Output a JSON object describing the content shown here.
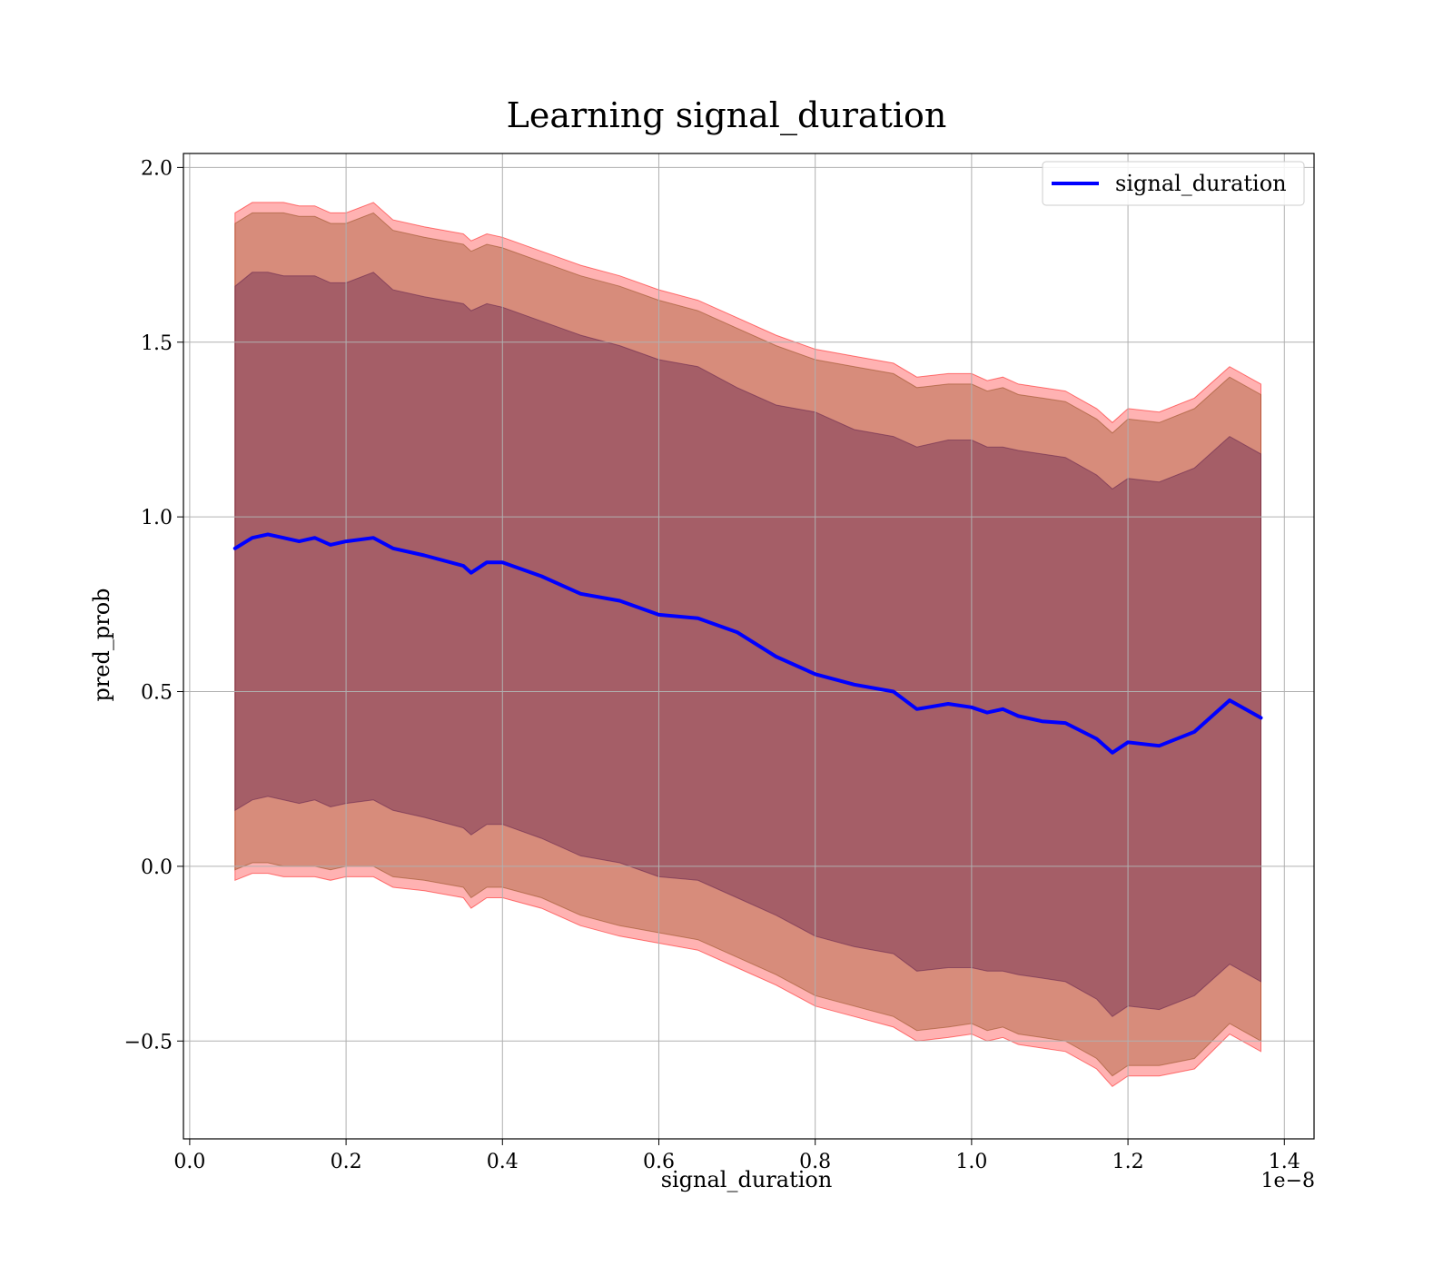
{
  "chart_data": {
    "type": "line",
    "title": "Learning signal_duration",
    "xlabel": "signal_duration",
    "ylabel": "pred_prob",
    "x_offset_label": "1e−8",
    "xlim": [
      -0.008,
      1.438
    ],
    "ylim": [
      -0.78,
      2.04
    ],
    "xticks": [
      0.0,
      0.2,
      0.4,
      0.6,
      0.8,
      1.0,
      1.2,
      1.4
    ],
    "xtick_labels": [
      "0.0",
      "0.2",
      "0.4",
      "0.6",
      "0.8",
      "1.0",
      "1.2",
      "1.4"
    ],
    "yticks": [
      -0.5,
      0.0,
      0.5,
      1.0,
      1.5,
      2.0
    ],
    "ytick_labels": [
      "−0.5",
      "0.0",
      "0.5",
      "1.0",
      "1.5",
      "2.0"
    ],
    "grid": true,
    "legend_position": "top-right",
    "colors": {
      "line": "#0000ff",
      "band_outer": "#ff0000",
      "band_middle": "#8b4513",
      "band_inner": "#5a1a4a"
    },
    "x": [
      0.058,
      0.08,
      0.1,
      0.12,
      0.14,
      0.16,
      0.18,
      0.2,
      0.235,
      0.26,
      0.3,
      0.35,
      0.36,
      0.38,
      0.4,
      0.45,
      0.5,
      0.55,
      0.6,
      0.65,
      0.7,
      0.75,
      0.8,
      0.85,
      0.9,
      0.93,
      0.97,
      1.0,
      1.02,
      1.04,
      1.06,
      1.09,
      1.12,
      1.16,
      1.18,
      1.2,
      1.24,
      1.285,
      1.33,
      1.37
    ],
    "series": [
      {
        "name": "signal_duration",
        "values": [
          0.91,
          0.94,
          0.95,
          0.94,
          0.93,
          0.94,
          0.92,
          0.93,
          0.94,
          0.91,
          0.89,
          0.86,
          0.84,
          0.87,
          0.87,
          0.83,
          0.78,
          0.76,
          0.72,
          0.71,
          0.67,
          0.6,
          0.55,
          0.52,
          0.5,
          0.45,
          0.465,
          0.455,
          0.44,
          0.45,
          0.43,
          0.415,
          0.41,
          0.365,
          0.325,
          0.355,
          0.345,
          0.385,
          0.475,
          0.425
        ]
      }
    ],
    "bands": [
      {
        "role": "outer",
        "upper": [
          1.87,
          1.9,
          1.9,
          1.9,
          1.89,
          1.89,
          1.87,
          1.87,
          1.9,
          1.85,
          1.83,
          1.81,
          1.79,
          1.81,
          1.8,
          1.76,
          1.72,
          1.69,
          1.65,
          1.62,
          1.57,
          1.52,
          1.48,
          1.46,
          1.44,
          1.4,
          1.41,
          1.41,
          1.39,
          1.4,
          1.38,
          1.37,
          1.36,
          1.31,
          1.27,
          1.31,
          1.3,
          1.34,
          1.43,
          1.38
        ],
        "lower": [
          -0.04,
          -0.02,
          -0.02,
          -0.03,
          -0.03,
          -0.03,
          -0.04,
          -0.03,
          -0.03,
          -0.06,
          -0.07,
          -0.09,
          -0.12,
          -0.09,
          -0.09,
          -0.12,
          -0.17,
          -0.2,
          -0.22,
          -0.24,
          -0.29,
          -0.34,
          -0.4,
          -0.43,
          -0.46,
          -0.5,
          -0.49,
          -0.48,
          -0.5,
          -0.49,
          -0.51,
          -0.52,
          -0.53,
          -0.58,
          -0.63,
          -0.6,
          -0.6,
          -0.58,
          -0.48,
          -0.53
        ]
      },
      {
        "role": "middle",
        "upper": [
          1.84,
          1.87,
          1.87,
          1.87,
          1.86,
          1.86,
          1.84,
          1.84,
          1.87,
          1.82,
          1.8,
          1.78,
          1.76,
          1.78,
          1.77,
          1.73,
          1.69,
          1.66,
          1.62,
          1.59,
          1.54,
          1.49,
          1.45,
          1.43,
          1.41,
          1.37,
          1.38,
          1.38,
          1.36,
          1.37,
          1.35,
          1.34,
          1.33,
          1.28,
          1.24,
          1.28,
          1.27,
          1.31,
          1.4,
          1.35
        ],
        "lower": [
          -0.01,
          0.01,
          0.01,
          0.0,
          0.0,
          0.0,
          -0.01,
          0.0,
          0.0,
          -0.03,
          -0.04,
          -0.06,
          -0.09,
          -0.06,
          -0.06,
          -0.09,
          -0.14,
          -0.17,
          -0.19,
          -0.21,
          -0.26,
          -0.31,
          -0.37,
          -0.4,
          -0.43,
          -0.47,
          -0.46,
          -0.45,
          -0.47,
          -0.46,
          -0.48,
          -0.49,
          -0.5,
          -0.55,
          -0.6,
          -0.57,
          -0.57,
          -0.55,
          -0.45,
          -0.5
        ]
      },
      {
        "role": "inner",
        "upper": [
          1.66,
          1.7,
          1.7,
          1.69,
          1.69,
          1.69,
          1.67,
          1.67,
          1.7,
          1.65,
          1.63,
          1.61,
          1.59,
          1.61,
          1.6,
          1.56,
          1.52,
          1.49,
          1.45,
          1.43,
          1.37,
          1.32,
          1.3,
          1.25,
          1.23,
          1.2,
          1.22,
          1.22,
          1.2,
          1.2,
          1.19,
          1.18,
          1.17,
          1.12,
          1.08,
          1.11,
          1.1,
          1.14,
          1.23,
          1.18
        ],
        "lower": [
          0.16,
          0.19,
          0.2,
          0.19,
          0.18,
          0.19,
          0.17,
          0.18,
          0.19,
          0.16,
          0.14,
          0.11,
          0.09,
          0.12,
          0.12,
          0.08,
          0.03,
          0.01,
          -0.03,
          -0.04,
          -0.09,
          -0.14,
          -0.2,
          -0.23,
          -0.25,
          -0.3,
          -0.29,
          -0.29,
          -0.3,
          -0.3,
          -0.31,
          -0.32,
          -0.33,
          -0.38,
          -0.43,
          -0.4,
          -0.41,
          -0.37,
          -0.28,
          -0.33
        ]
      }
    ]
  }
}
